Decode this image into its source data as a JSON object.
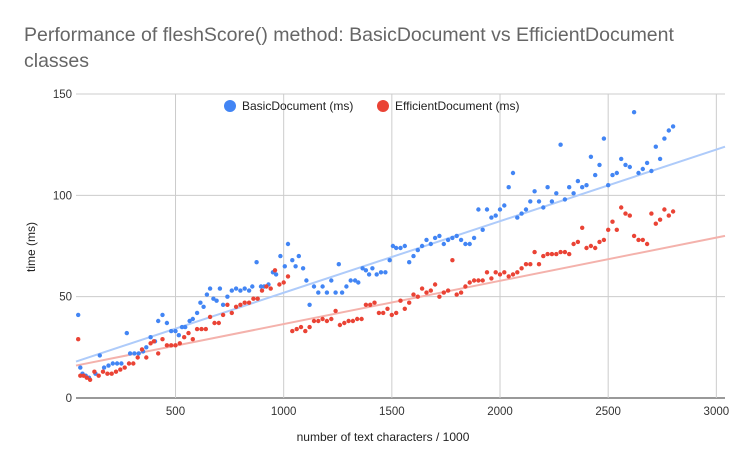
{
  "chart_data": {
    "type": "scatter",
    "title": "Performance of fleshScore() method: BasicDocument vs EfficientDocument classes",
    "xlabel": "number of text characters / 1000",
    "ylabel": "time (ms)",
    "xlim": [
      40,
      3040
    ],
    "ylim": [
      0,
      150
    ],
    "x_ticks": [
      500,
      1000,
      1500,
      2000,
      2500,
      3000
    ],
    "y_ticks": [
      0,
      50,
      100,
      150
    ],
    "grid": true,
    "legend_position": "top",
    "trendlines": true,
    "series": [
      {
        "name": "BasicDocument (ms)",
        "color": "#4285f4",
        "trend_color": "#aecbfa",
        "trend": [
          [
            40,
            18
          ],
          [
            3040,
            124
          ]
        ],
        "points": [
          [
            50,
            41
          ],
          [
            60,
            15
          ],
          [
            70,
            12
          ],
          [
            85,
            11
          ],
          [
            100,
            10
          ],
          [
            130,
            12
          ],
          [
            150,
            21
          ],
          [
            170,
            15
          ],
          [
            190,
            16
          ],
          [
            210,
            17
          ],
          [
            230,
            17
          ],
          [
            250,
            17
          ],
          [
            275,
            32
          ],
          [
            290,
            22
          ],
          [
            310,
            22
          ],
          [
            330,
            22
          ],
          [
            350,
            23
          ],
          [
            365,
            25
          ],
          [
            385,
            30
          ],
          [
            405,
            28
          ],
          [
            420,
            38
          ],
          [
            440,
            41
          ],
          [
            460,
            37
          ],
          [
            480,
            33
          ],
          [
            500,
            33
          ],
          [
            515,
            31
          ],
          [
            530,
            35
          ],
          [
            545,
            35
          ],
          [
            565,
            38
          ],
          [
            580,
            39
          ],
          [
            600,
            42
          ],
          [
            615,
            47
          ],
          [
            630,
            45
          ],
          [
            645,
            51
          ],
          [
            660,
            54
          ],
          [
            675,
            49
          ],
          [
            690,
            48
          ],
          [
            705,
            54
          ],
          [
            720,
            46
          ],
          [
            740,
            50
          ],
          [
            760,
            53
          ],
          [
            780,
            54
          ],
          [
            800,
            53
          ],
          [
            820,
            54
          ],
          [
            840,
            53
          ],
          [
            855,
            55
          ],
          [
            875,
            67
          ],
          [
            895,
            55
          ],
          [
            910,
            55
          ],
          [
            930,
            56
          ],
          [
            950,
            62
          ],
          [
            965,
            61
          ],
          [
            985,
            70
          ],
          [
            1005,
            65
          ],
          [
            1020,
            76
          ],
          [
            1040,
            68
          ],
          [
            1055,
            65
          ],
          [
            1070,
            70
          ],
          [
            1090,
            64
          ],
          [
            1105,
            58
          ],
          [
            1120,
            46
          ],
          [
            1140,
            55
          ],
          [
            1160,
            52
          ],
          [
            1180,
            55
          ],
          [
            1200,
            52
          ],
          [
            1220,
            58
          ],
          [
            1240,
            52
          ],
          [
            1255,
            66
          ],
          [
            1270,
            52
          ],
          [
            1290,
            55
          ],
          [
            1310,
            58
          ],
          [
            1330,
            58
          ],
          [
            1345,
            57
          ],
          [
            1365,
            64
          ],
          [
            1380,
            63
          ],
          [
            1395,
            61
          ],
          [
            1410,
            64
          ],
          [
            1430,
            61
          ],
          [
            1450,
            62
          ],
          [
            1470,
            62
          ],
          [
            1490,
            68
          ],
          [
            1505,
            75
          ],
          [
            1520,
            74
          ],
          [
            1540,
            74
          ],
          [
            1560,
            75
          ],
          [
            1580,
            67
          ],
          [
            1600,
            70
          ],
          [
            1620,
            73
          ],
          [
            1640,
            75
          ],
          [
            1660,
            78
          ],
          [
            1680,
            76
          ],
          [
            1700,
            79
          ],
          [
            1720,
            80
          ],
          [
            1740,
            76
          ],
          [
            1760,
            78
          ],
          [
            1780,
            79
          ],
          [
            1800,
            80
          ],
          [
            1820,
            78
          ],
          [
            1840,
            76
          ],
          [
            1860,
            76
          ],
          [
            1880,
            79
          ],
          [
            1900,
            93
          ],
          [
            1920,
            83
          ],
          [
            1940,
            93
          ],
          [
            1960,
            89
          ],
          [
            1980,
            90
          ],
          [
            2000,
            93
          ],
          [
            2020,
            95
          ],
          [
            2040,
            104
          ],
          [
            2060,
            111
          ],
          [
            2080,
            89
          ],
          [
            2100,
            91
          ],
          [
            2120,
            93
          ],
          [
            2140,
            97
          ],
          [
            2160,
            102
          ],
          [
            2180,
            97
          ],
          [
            2200,
            94
          ],
          [
            2220,
            104
          ],
          [
            2240,
            97
          ],
          [
            2260,
            101
          ],
          [
            2280,
            125
          ],
          [
            2300,
            98
          ],
          [
            2320,
            104
          ],
          [
            2340,
            101
          ],
          [
            2360,
            107
          ],
          [
            2380,
            104
          ],
          [
            2400,
            105
          ],
          [
            2420,
            119
          ],
          [
            2440,
            110
          ],
          [
            2460,
            115
          ],
          [
            2480,
            128
          ],
          [
            2500,
            105
          ],
          [
            2520,
            110
          ],
          [
            2540,
            111
          ],
          [
            2560,
            118
          ],
          [
            2580,
            115
          ],
          [
            2600,
            114
          ],
          [
            2620,
            141
          ],
          [
            2640,
            111
          ],
          [
            2660,
            113
          ],
          [
            2680,
            116
          ],
          [
            2700,
            112
          ],
          [
            2720,
            124
          ],
          [
            2740,
            118
          ],
          [
            2760,
            128
          ],
          [
            2780,
            132
          ],
          [
            2800,
            134
          ]
        ]
      },
      {
        "name": "EfficientDocument (ms)",
        "color": "#ea4335",
        "trend_color": "#f4b2ac",
        "trend": [
          [
            40,
            16
          ],
          [
            3040,
            80
          ]
        ],
        "points": [
          [
            50,
            29
          ],
          [
            60,
            11
          ],
          [
            75,
            11
          ],
          [
            90,
            10
          ],
          [
            105,
            9
          ],
          [
            125,
            13
          ],
          [
            145,
            11
          ],
          [
            165,
            13
          ],
          [
            185,
            12
          ],
          [
            205,
            12
          ],
          [
            225,
            13
          ],
          [
            245,
            14
          ],
          [
            265,
            15
          ],
          [
            285,
            17
          ],
          [
            305,
            17
          ],
          [
            325,
            20
          ],
          [
            345,
            24
          ],
          [
            365,
            20
          ],
          [
            385,
            27
          ],
          [
            400,
            28
          ],
          [
            420,
            22
          ],
          [
            440,
            29
          ],
          [
            460,
            26
          ],
          [
            480,
            26
          ],
          [
            500,
            26
          ],
          [
            520,
            27
          ],
          [
            540,
            30
          ],
          [
            560,
            32
          ],
          [
            580,
            29
          ],
          [
            600,
            34
          ],
          [
            620,
            34
          ],
          [
            640,
            34
          ],
          [
            660,
            40
          ],
          [
            680,
            37
          ],
          [
            700,
            37
          ],
          [
            720,
            41
          ],
          [
            740,
            46
          ],
          [
            760,
            42
          ],
          [
            780,
            45
          ],
          [
            800,
            46
          ],
          [
            820,
            47
          ],
          [
            840,
            47
          ],
          [
            860,
            49
          ],
          [
            880,
            49
          ],
          [
            900,
            53
          ],
          [
            920,
            55
          ],
          [
            940,
            54
          ],
          [
            960,
            63
          ],
          [
            980,
            56
          ],
          [
            1000,
            57
          ],
          [
            1020,
            60
          ],
          [
            1040,
            33
          ],
          [
            1060,
            34
          ],
          [
            1080,
            35
          ],
          [
            1100,
            33
          ],
          [
            1120,
            35
          ],
          [
            1140,
            38
          ],
          [
            1160,
            38
          ],
          [
            1180,
            39
          ],
          [
            1200,
            38
          ],
          [
            1220,
            39
          ],
          [
            1240,
            43
          ],
          [
            1260,
            36
          ],
          [
            1280,
            37
          ],
          [
            1300,
            38
          ],
          [
            1320,
            38
          ],
          [
            1340,
            39
          ],
          [
            1360,
            39
          ],
          [
            1380,
            46
          ],
          [
            1400,
            46
          ],
          [
            1420,
            47
          ],
          [
            1440,
            42
          ],
          [
            1460,
            42
          ],
          [
            1480,
            44
          ],
          [
            1500,
            41
          ],
          [
            1520,
            42
          ],
          [
            1540,
            48
          ],
          [
            1560,
            44
          ],
          [
            1580,
            47
          ],
          [
            1600,
            51
          ],
          [
            1620,
            50
          ],
          [
            1640,
            54
          ],
          [
            1660,
            52
          ],
          [
            1680,
            53
          ],
          [
            1700,
            56
          ],
          [
            1720,
            50
          ],
          [
            1740,
            52
          ],
          [
            1760,
            53
          ],
          [
            1780,
            68
          ],
          [
            1800,
            51
          ],
          [
            1820,
            52
          ],
          [
            1840,
            55
          ],
          [
            1860,
            57
          ],
          [
            1880,
            58
          ],
          [
            1900,
            58
          ],
          [
            1920,
            58
          ],
          [
            1940,
            62
          ],
          [
            1960,
            59
          ],
          [
            1980,
            62
          ],
          [
            2000,
            61
          ],
          [
            2020,
            62
          ],
          [
            2040,
            60
          ],
          [
            2060,
            61
          ],
          [
            2080,
            62
          ],
          [
            2100,
            64
          ],
          [
            2120,
            66
          ],
          [
            2140,
            66
          ],
          [
            2160,
            72
          ],
          [
            2180,
            66
          ],
          [
            2200,
            70
          ],
          [
            2220,
            71
          ],
          [
            2240,
            71
          ],
          [
            2260,
            71
          ],
          [
            2280,
            72
          ],
          [
            2300,
            72
          ],
          [
            2320,
            71
          ],
          [
            2340,
            76
          ],
          [
            2360,
            77
          ],
          [
            2380,
            84
          ],
          [
            2400,
            74
          ],
          [
            2420,
            75
          ],
          [
            2440,
            74
          ],
          [
            2460,
            77
          ],
          [
            2480,
            78
          ],
          [
            2500,
            83
          ],
          [
            2520,
            87
          ],
          [
            2540,
            83
          ],
          [
            2560,
            94
          ],
          [
            2580,
            91
          ],
          [
            2600,
            90
          ],
          [
            2620,
            80
          ],
          [
            2640,
            78
          ],
          [
            2660,
            78
          ],
          [
            2680,
            76
          ],
          [
            2700,
            91
          ],
          [
            2720,
            86
          ],
          [
            2740,
            88
          ],
          [
            2760,
            93
          ],
          [
            2780,
            90
          ],
          [
            2800,
            92
          ]
        ]
      }
    ]
  }
}
